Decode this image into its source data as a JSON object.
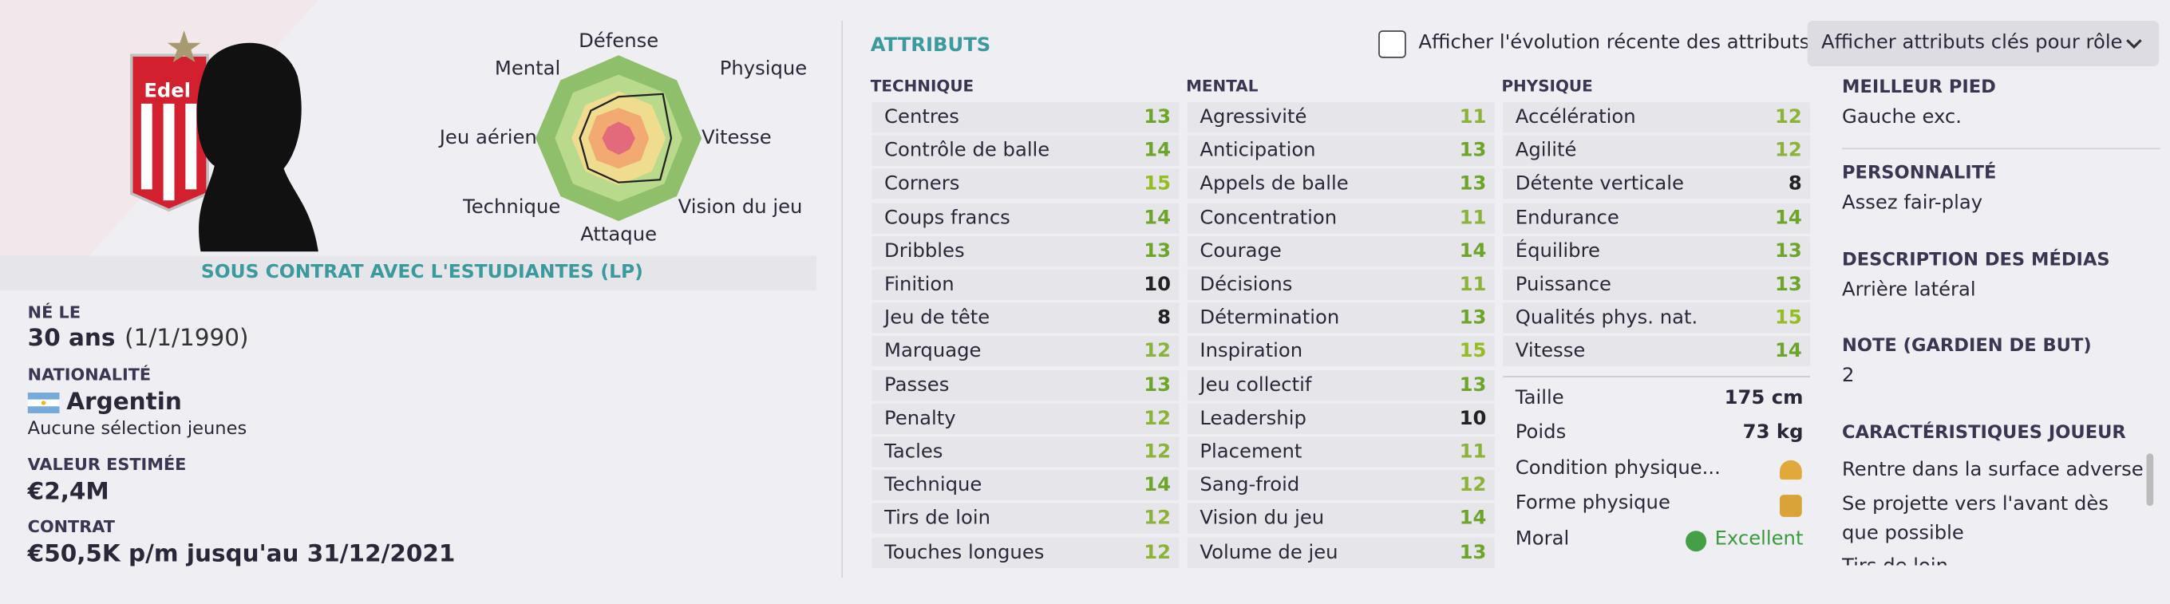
{
  "profile": {
    "crest_text": "Edel",
    "contract_banner": "SOUS CONTRAT AVEC L'ESTUDIANTES (LP)",
    "born": {
      "label": "NÉ LE",
      "age": "30 ans",
      "date": "(1/1/1990)"
    },
    "nationality": {
      "label": "NATIONALITÉ",
      "value": "Argentin",
      "note": "Aucune sélection jeunes"
    },
    "value": {
      "label": "VALEUR ESTIMÉE",
      "value": "€2,4M"
    },
    "contract": {
      "label": "CONTRAT",
      "value": "€50,5K p/m jusqu'au 31/12/2021"
    }
  },
  "radar": {
    "labels": [
      "Défense",
      "Physique",
      "Vitesse",
      "Vision du jeu",
      "Attaque",
      "Technique",
      "Jeu aérien",
      "Mental"
    ]
  },
  "attributes": {
    "title": "ATTRIBUTS",
    "toggle": "Afficher l'évolution récente des attributs",
    "role_button": "Afficher attributs clés pour rôle",
    "columns": [
      {
        "title": "TECHNIQUE",
        "rows": [
          {
            "name": "Centres",
            "value": 13
          },
          {
            "name": "Contrôle de balle",
            "value": 14
          },
          {
            "name": "Corners",
            "value": 15
          },
          {
            "name": "Coups francs",
            "value": 14
          },
          {
            "name": "Dribbles",
            "value": 13
          },
          {
            "name": "Finition",
            "value": 10
          },
          {
            "name": "Jeu de tête",
            "value": 8
          },
          {
            "name": "Marquage",
            "value": 12
          },
          {
            "name": "Passes",
            "value": 13
          },
          {
            "name": "Penalty",
            "value": 12
          },
          {
            "name": "Tacles",
            "value": 12
          },
          {
            "name": "Technique",
            "value": 14
          },
          {
            "name": "Tirs de loin",
            "value": 12
          },
          {
            "name": "Touches longues",
            "value": 12
          }
        ]
      },
      {
        "title": "MENTAL",
        "rows": [
          {
            "name": "Agressivité",
            "value": 11
          },
          {
            "name": "Anticipation",
            "value": 13
          },
          {
            "name": "Appels de balle",
            "value": 13
          },
          {
            "name": "Concentration",
            "value": 11
          },
          {
            "name": "Courage",
            "value": 14
          },
          {
            "name": "Décisions",
            "value": 11
          },
          {
            "name": "Détermination",
            "value": 13
          },
          {
            "name": "Inspiration",
            "value": 15
          },
          {
            "name": "Jeu collectif",
            "value": 13
          },
          {
            "name": "Leadership",
            "value": 10
          },
          {
            "name": "Placement",
            "value": 11
          },
          {
            "name": "Sang-froid",
            "value": 12
          },
          {
            "name": "Vision du jeu",
            "value": 14
          },
          {
            "name": "Volume de jeu",
            "value": 13
          }
        ]
      },
      {
        "title": "PHYSIQUE",
        "rows": [
          {
            "name": "Accélération",
            "value": 12
          },
          {
            "name": "Agilité",
            "value": 12
          },
          {
            "name": "Détente verticale",
            "value": 8
          },
          {
            "name": "Endurance",
            "value": 14
          },
          {
            "name": "Équilibre",
            "value": 13
          },
          {
            "name": "Puissance",
            "value": 13
          },
          {
            "name": "Qualités phys. nat.",
            "value": 15
          },
          {
            "name": "Vitesse",
            "value": 14
          }
        ]
      }
    ],
    "physical_info": [
      {
        "name": "Taille",
        "value": "175 cm"
      },
      {
        "name": "Poids",
        "value": "73 kg"
      },
      {
        "name": "Condition physique..."
      },
      {
        "name": "Forme physique"
      },
      {
        "name": "Moral",
        "value": "Excellent"
      }
    ]
  },
  "info": [
    {
      "label": "MEILLEUR PIED",
      "value": "Gauche exc."
    },
    {
      "label": "PERSONNALITÉ",
      "value": "Assez fair-play"
    },
    {
      "label": "DESCRIPTION DES MÉDIAS",
      "value": "Arrière latéral"
    },
    {
      "label": "NOTE (GARDIEN DE BUT)",
      "value": "2"
    }
  ],
  "traits": {
    "label": "CARACTÉRISTIQUES JOUEUR",
    "items": [
      "Rentre dans la surface adverse",
      "Se projette vers l'avant dès que possible",
      "Tirs de loin"
    ]
  }
}
